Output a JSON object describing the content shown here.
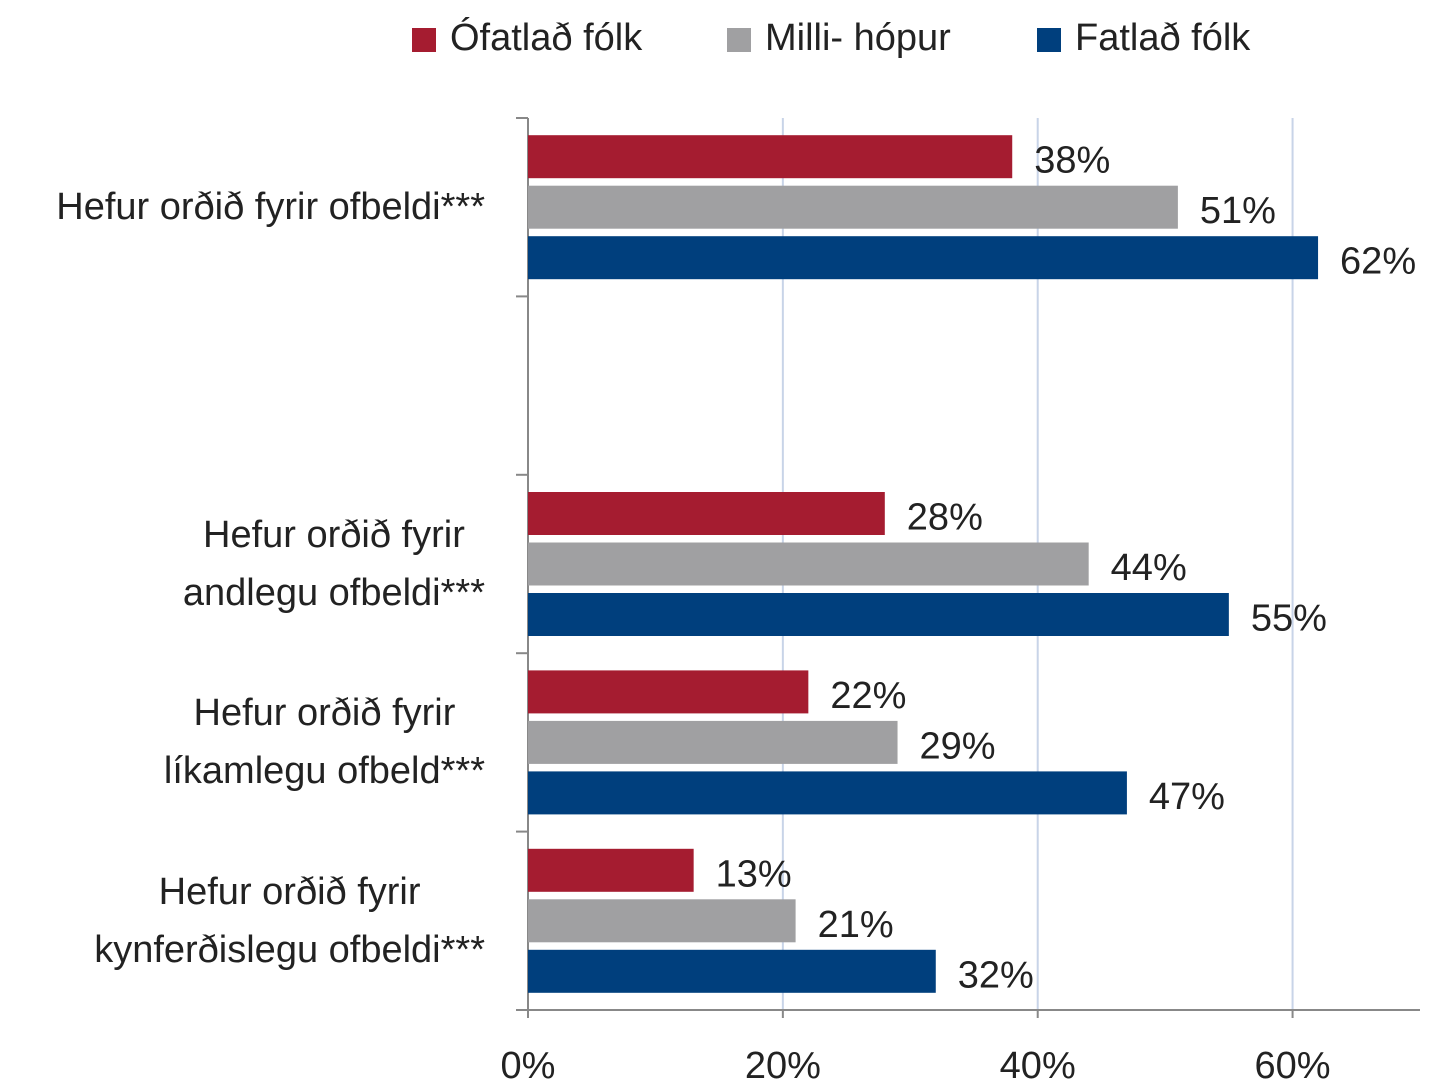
{
  "chart_data": {
    "type": "barh",
    "categories": [
      "Hefur orðið fyrir ofbeldi***",
      null,
      "Hefur orðið fyrir\nandlegu ofbeldi***",
      "Hefur orðið fyrir\nlíkamlegu ofbeld***",
      "Hefur orðið fyrir\nkynferðislegu ofbeldi***"
    ],
    "series": [
      {
        "name": "Ófatlað fólk",
        "color": "#a51c30",
        "values": [
          38,
          null,
          28,
          22,
          13
        ],
        "value_labels": [
          "38%",
          null,
          "28%",
          "22%",
          "13%"
        ]
      },
      {
        "name": "Milli- hópur",
        "color": "#a0a0a2",
        "values": [
          51,
          null,
          44,
          29,
          21
        ],
        "value_labels": [
          "51%",
          null,
          "44%",
          "29%",
          "21%"
        ]
      },
      {
        "name": "Fatlað fólk",
        "color": "#003f7d",
        "values": [
          62,
          null,
          55,
          47,
          32
        ],
        "value_labels": [
          "62%",
          null,
          "55%",
          "47%",
          "32%"
        ]
      }
    ],
    "xlim": [
      0,
      70
    ],
    "xticks": [
      {
        "value": 0,
        "label": "0%"
      },
      {
        "value": 20,
        "label": "20%"
      },
      {
        "value": 40,
        "label": "40%"
      },
      {
        "value": 60,
        "label": "60%"
      }
    ],
    "grid": true,
    "legend": "top"
  }
}
